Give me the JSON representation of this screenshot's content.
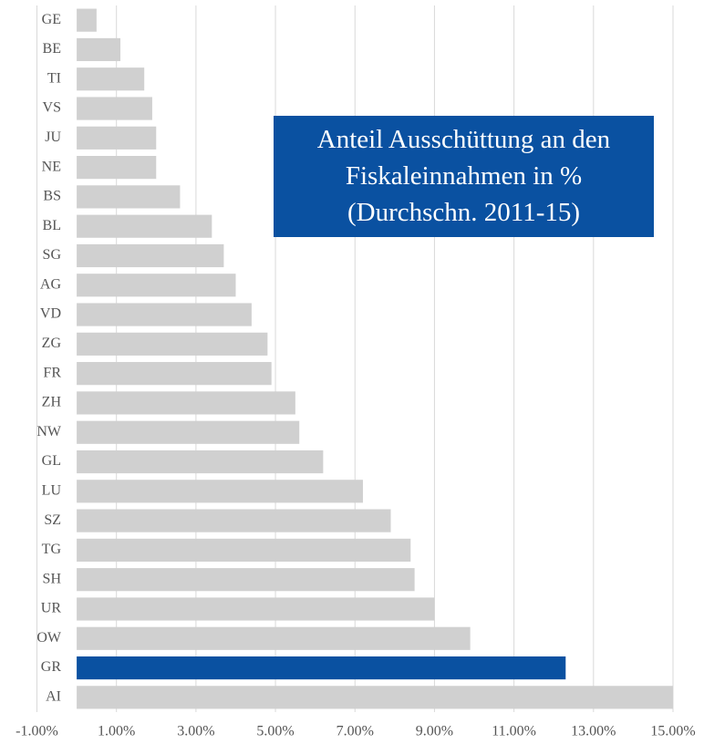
{
  "chart_data": {
    "type": "bar",
    "orientation": "horizontal",
    "title": "Anteil Ausschüttung an den Fiskaleinnahmen in % (Durchschn. 2011-15)",
    "categories": [
      "GE",
      "BE",
      "TI",
      "VS",
      "JU",
      "NE",
      "BS",
      "BL",
      "SG",
      "AG",
      "VD",
      "ZG",
      "FR",
      "ZH",
      "NW",
      "GL",
      "LU",
      "SZ",
      "TG",
      "SH",
      "UR",
      "OW",
      "GR",
      "AI"
    ],
    "values": [
      0.5,
      1.1,
      1.7,
      1.9,
      2.0,
      2.0,
      2.6,
      3.4,
      3.7,
      4.0,
      4.4,
      4.8,
      4.9,
      5.5,
      5.6,
      6.2,
      7.2,
      7.9,
      8.4,
      8.5,
      9.0,
      9.9,
      12.3,
      15.0
    ],
    "colors": [
      "#d0d0d0",
      "#d0d0d0",
      "#d0d0d0",
      "#d0d0d0",
      "#d0d0d0",
      "#d0d0d0",
      "#d0d0d0",
      "#d0d0d0",
      "#d0d0d0",
      "#d0d0d0",
      "#d0d0d0",
      "#d0d0d0",
      "#d0d0d0",
      "#d0d0d0",
      "#d0d0d0",
      "#d0d0d0",
      "#d0d0d0",
      "#d0d0d0",
      "#d0d0d0",
      "#d0d0d0",
      "#d0d0d0",
      "#d0d0d0",
      "#0a51a1",
      "#d0d0d0"
    ],
    "xlim": [
      -1,
      15
    ],
    "xticks": [
      {
        "value": -1,
        "label": "-1.00%"
      },
      {
        "value": 1,
        "label": "1.00%"
      },
      {
        "value": 3,
        "label": "3.00%"
      },
      {
        "value": 5,
        "label": "5.00%"
      },
      {
        "value": 7,
        "label": "7.00%"
      },
      {
        "value": 9,
        "label": "9.00%"
      },
      {
        "value": 11,
        "label": "11.00%"
      },
      {
        "value": 13,
        "label": "13.00%"
      },
      {
        "value": 15,
        "label": "15.00%"
      }
    ],
    "grid": true
  }
}
